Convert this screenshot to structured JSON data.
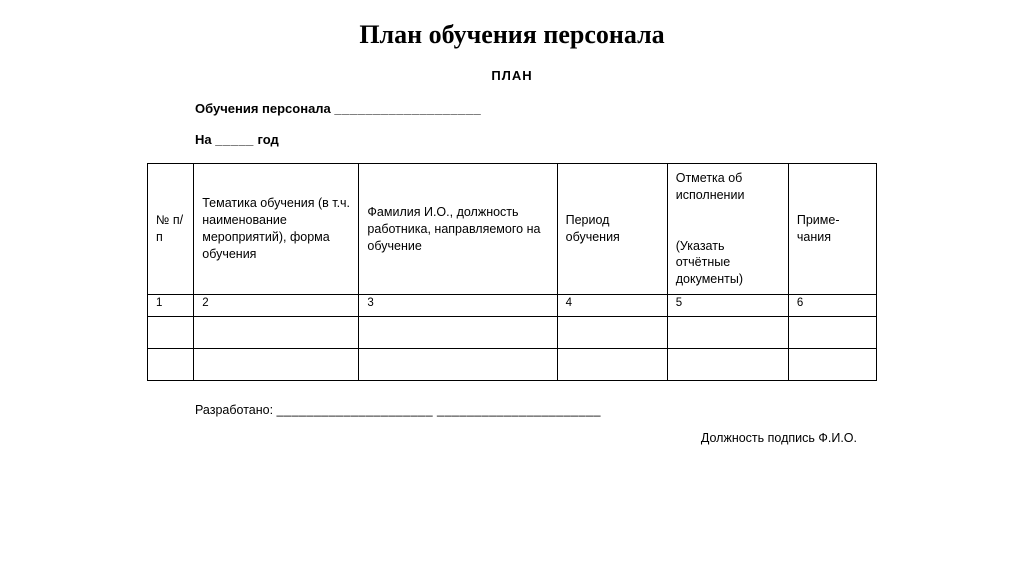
{
  "page_title": "План обучения персонала",
  "plan_heading": "ПЛАН",
  "form_line1_label": "Обучения персонала",
  "form_line1_blank": "___________________",
  "form_line2_prefix": "На",
  "form_line2_blank": "_____",
  "form_line2_suffix": "год",
  "table": {
    "headers": [
      "№ п/п",
      "Тематика обучения (в т.ч. наименование мероприятий), форма обучения",
      "Фамилия И.О., должность работника, направляемого на обучение",
      "Период обучения",
      "Отметка об исполнении\n\n(Указать отчётные документы)",
      "Приме-чания"
    ],
    "number_row": [
      "1",
      "2",
      "3",
      "4",
      "5",
      "6"
    ],
    "empty_rows": 2,
    "col_widths_class": [
      "col1",
      "col2",
      "col3",
      "col4",
      "col5",
      "col6"
    ]
  },
  "footer": {
    "developed_label": "Разработано:",
    "developed_blank": "_____________________ ______________________",
    "signature_line": "Должность подпись Ф.И.О."
  }
}
